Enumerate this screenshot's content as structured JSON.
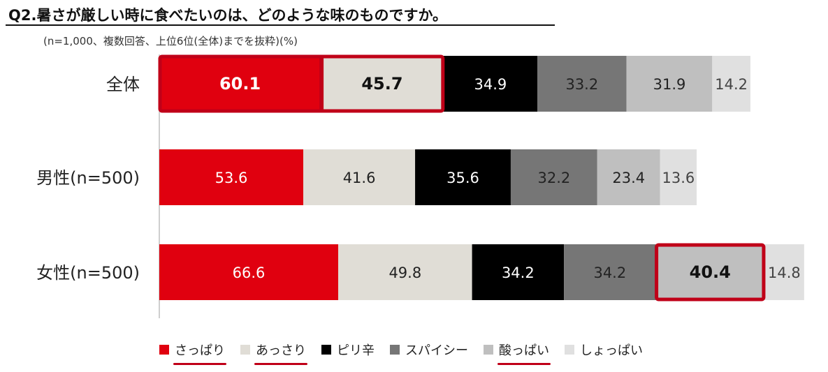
{
  "title": "Q2.暑さが厳しい時に食べたいのは、どのような味のものですか。",
  "subtitle": "(n=1,000、複数回答、上位6位(全体)までを抜粋)(%)",
  "colors": {
    "accent": "#e0000f",
    "highlight_border": "#c00018",
    "series": [
      "#e0000f",
      "#e0ddd6",
      "#000000",
      "#767676",
      "#bfbfbf",
      "#e0e0e0"
    ],
    "label_colors": [
      "#ffffff",
      "#222222",
      "#ffffff",
      "#222222",
      "#222222",
      "#444444"
    ]
  },
  "chart_data": {
    "type": "bar",
    "orientation": "horizontal",
    "stacked": true,
    "title": "Q2.暑さが厳しい時に食べたいのは、どのような味のものですか。",
    "unit": "%",
    "categories": [
      "全体",
      "男性(n=500)",
      "女性(n=500)"
    ],
    "series": [
      {
        "name": "さっぱり",
        "values": [
          60.1,
          53.6,
          66.6
        ],
        "underlined": true
      },
      {
        "name": "あっさり",
        "values": [
          45.7,
          41.6,
          49.8
        ],
        "underlined": true
      },
      {
        "name": "ピリ辛",
        "values": [
          34.9,
          35.6,
          34.2
        ],
        "underlined": false
      },
      {
        "name": "スパイシー",
        "values": [
          33.2,
          32.2,
          34.2
        ],
        "underlined": false
      },
      {
        "name": "酸っぱい",
        "values": [
          31.9,
          23.4,
          40.4
        ],
        "underlined": true
      },
      {
        "name": "しょっぱい",
        "values": [
          14.2,
          13.6,
          14.8
        ],
        "underlined": false
      }
    ],
    "highlights": [
      {
        "category": "全体",
        "series": [
          "さっぱり",
          "あっさり"
        ]
      },
      {
        "category": "女性(n=500)",
        "series": [
          "酸っぱい"
        ]
      }
    ],
    "legend_position": "bottom"
  }
}
